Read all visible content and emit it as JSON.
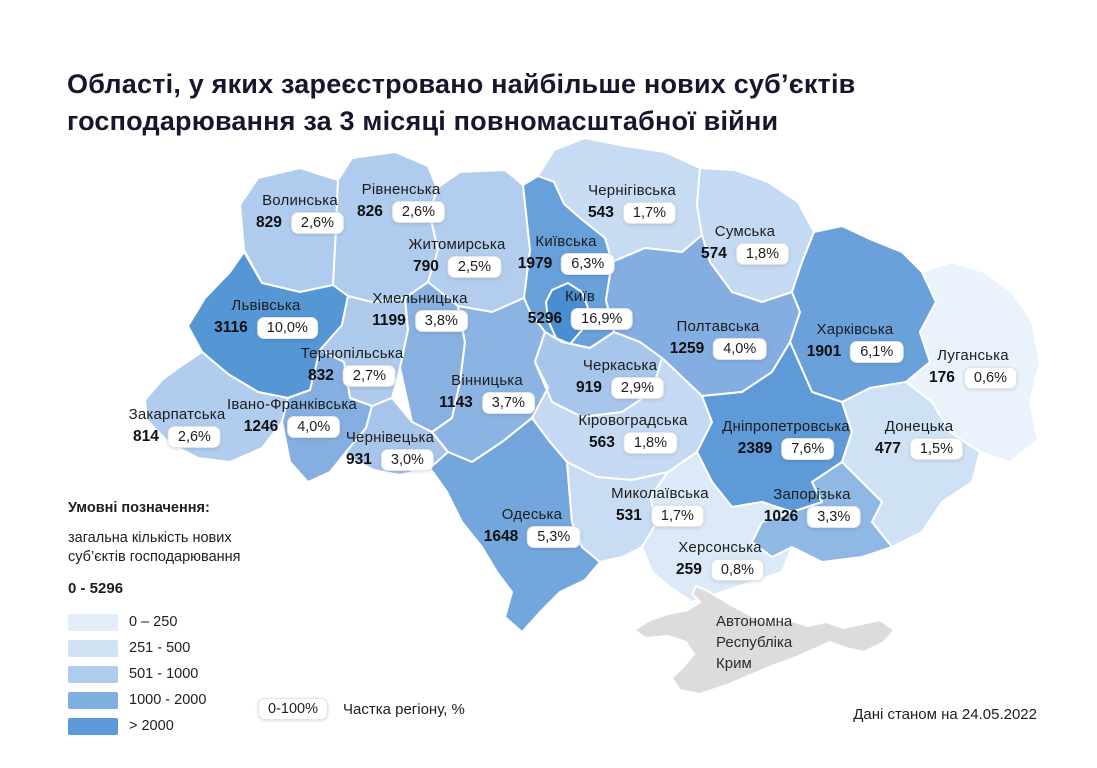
{
  "title": {
    "line1": "Області, у яких зареєстровано найбільше нових суб’єктів",
    "line2": "господарювання за 3 місяці повномасштабної війни"
  },
  "legend": {
    "heading": "Умовні позначення:",
    "subtitle_line1": "загальна кількість нових",
    "subtitle_line2": "суб’єктів господарювання",
    "range": "0 - 5296",
    "buckets": [
      {
        "label": "0 – 250",
        "color": "#e3eefa"
      },
      {
        "label": "251 - 500",
        "color": "#cfe2f6"
      },
      {
        "label": "501 - 1000",
        "color": "#afccee"
      },
      {
        "label": "1000 - 2000",
        "color": "#7fafe0"
      },
      {
        "label": "> 2000",
        "color": "#5b99d8"
      }
    ],
    "share_badge": "0-100%",
    "share_label": "Частка регіону, %"
  },
  "crimea": {
    "lines": [
      "Автономна",
      "Республіка",
      "Крим"
    ],
    "fill": "#dcdcdc"
  },
  "footer": {
    "note": "Дані станом на 24.05.2022"
  },
  "chart_data": {
    "type": "heatmap",
    "subtype": "choropleth-map-ukraine-oblasts",
    "title": "Області, у яких зареєстровано найбільше нових суб’єктів господарювання за 3 місяці повномасштабної війни",
    "value_label": "загальна кількість нових суб’єктів господарювання",
    "value_range": [
      0,
      5296
    ],
    "share_scale": "0-100%",
    "share_axis_label": "Частка регіону, %",
    "as_of": "Дані станом на 24.05.2022",
    "legend_position": "bottom-left",
    "no_data_region": {
      "name": "Автономна Республіка Крим",
      "fill": "#dcdcdc"
    },
    "regions": [
      {
        "key": "volyn",
        "name": "Волинська",
        "value": 829,
        "share": "2,6%",
        "fill": "#afcbed"
      },
      {
        "key": "rivne",
        "name": "Рівненська",
        "value": 826,
        "share": "2,6%",
        "fill": "#afcbed"
      },
      {
        "key": "zhytomyr",
        "name": "Житомирська",
        "value": 790,
        "share": "2,5%",
        "fill": "#b2cdee"
      },
      {
        "key": "chernihiv",
        "name": "Чернігівська",
        "value": 543,
        "share": "1,7%",
        "fill": "#c7dbf3"
      },
      {
        "key": "sumy",
        "name": "Сумська",
        "value": 574,
        "share": "1,8%",
        "fill": "#c4daf2"
      },
      {
        "key": "kyivska",
        "name": "Київська",
        "value": 1979,
        "share": "6,3%",
        "fill": "#68a0d9"
      },
      {
        "key": "kyiv-city",
        "name": "Київ",
        "value": 5296,
        "share": "16,9%",
        "fill": "#4a8ed2"
      },
      {
        "key": "lviv",
        "name": "Львівська",
        "value": 3116,
        "share": "10,0%",
        "fill": "#5596d5"
      },
      {
        "key": "ternopil",
        "name": "Тернопільська",
        "value": 832,
        "share": "2,7%",
        "fill": "#aecaed"
      },
      {
        "key": "khmelnytskyi",
        "name": "Хмельницька",
        "value": 1199,
        "share": "3,8%",
        "fill": "#88b1e2"
      },
      {
        "key": "vinnytsia",
        "name": "Вінницька",
        "value": 1143,
        "share": "3,7%",
        "fill": "#8cb4e3"
      },
      {
        "key": "cherkasy",
        "name": "Черкаська",
        "value": 919,
        "share": "2,9%",
        "fill": "#a8c6eb"
      },
      {
        "key": "poltava",
        "name": "Полтавська",
        "value": 1259,
        "share": "4,0%",
        "fill": "#84aee1"
      },
      {
        "key": "kharkiv",
        "name": "Харківська",
        "value": 1901,
        "share": "6,1%",
        "fill": "#6aa1da"
      },
      {
        "key": "luhansk",
        "name": "Луганська",
        "value": 176,
        "share": "0,6%",
        "fill": "#eaf2fb"
      },
      {
        "key": "zakarpattia",
        "name": "Закарпатська",
        "value": 814,
        "share": "2,6%",
        "fill": "#b0ccee"
      },
      {
        "key": "ivano",
        "name": "Івано-Франківська",
        "value": 1246,
        "share": "4,0%",
        "fill": "#85afe1"
      },
      {
        "key": "chernivtsi",
        "name": "Чернівецька",
        "value": 931,
        "share": "3,0%",
        "fill": "#a7c5ea"
      },
      {
        "key": "kirovohrad",
        "name": "Кіровоградська",
        "value": 563,
        "share": "1,8%",
        "fill": "#c5daf2"
      },
      {
        "key": "dnipro",
        "name": "Дніпропетровська",
        "value": 2389,
        "share": "7,6%",
        "fill": "#5e9ad7"
      },
      {
        "key": "donetsk",
        "name": "Донецька",
        "value": 477,
        "share": "1,5%",
        "fill": "#cfe1f5"
      },
      {
        "key": "odesa",
        "name": "Одеська",
        "value": 1648,
        "share": "5,3%",
        "fill": "#73a6dc"
      },
      {
        "key": "mykolaiv",
        "name": "Миколаївська",
        "value": 531,
        "share": "1,7%",
        "fill": "#c8dcf3"
      },
      {
        "key": "kherson",
        "name": "Херсонська",
        "value": 259,
        "share": "0,8%",
        "fill": "#dce9f8"
      },
      {
        "key": "zaporizhzhia",
        "name": "Запорізька",
        "value": 1026,
        "share": "3,3%",
        "fill": "#90b8e5"
      }
    ]
  }
}
